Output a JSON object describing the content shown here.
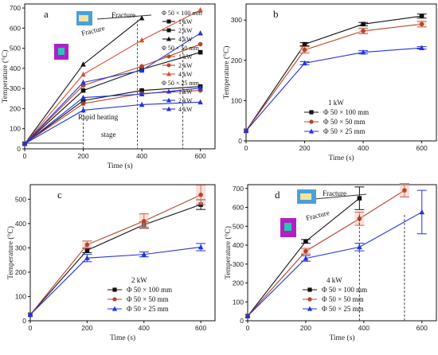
{
  "chart_data": [
    {
      "id": "a",
      "type": "line",
      "panel_letter": "a",
      "xlabel": "Time (s)",
      "ylabel": "Temperature (°C)",
      "xlim": [
        0,
        650
      ],
      "ylim": [
        0,
        720
      ],
      "xticks": [
        0,
        200,
        400,
        600
      ],
      "yticks": [
        0,
        100,
        200,
        300,
        400,
        500,
        600,
        700
      ],
      "x": [
        0,
        200,
        400,
        600
      ],
      "series": [
        {
          "group": "Φ 50 × 100 mm",
          "name": "1 kW",
          "color": "#111111",
          "marker": "square",
          "values": [
            25,
            240,
            290,
            310
          ]
        },
        {
          "group": "Φ 50 × 100 mm",
          "name": "2 kW",
          "color": "#111111",
          "marker": "square",
          "values": [
            25,
            290,
            395,
            480
          ]
        },
        {
          "group": "Φ 50 × 100 mm",
          "name": "4 kW",
          "color": "#111111",
          "marker": "triangle",
          "values": [
            25,
            420,
            650,
            null
          ]
        },
        {
          "group": "Φ 50 × 50 mm",
          "name": "1 kW",
          "color": "#b5452a",
          "marker": "circle",
          "values": [
            25,
            225,
            275,
            290
          ]
        },
        {
          "group": "Φ 50 × 50 mm",
          "name": "2 kW",
          "color": "#b5452a",
          "marker": "circle",
          "values": [
            25,
            315,
            410,
            520
          ]
        },
        {
          "group": "Φ 50 × 50 mm",
          "name": "4 kW",
          "color": "#d95030",
          "marker": "triangle",
          "values": [
            25,
            370,
            540,
            690
          ]
        },
        {
          "group": "Φ 50 × 25 mm",
          "name": "1 kW",
          "color": "#2233dd",
          "marker": "triangle",
          "values": [
            25,
            192,
            220,
            232
          ]
        },
        {
          "group": "Φ 50 × 25 mm",
          "name": "2 kW",
          "color": "#2233dd",
          "marker": "triangle",
          "values": [
            25,
            255,
            272,
            302
          ]
        },
        {
          "group": "Φ 50 × 25 mm",
          "name": "4 kW",
          "color": "#2233dd",
          "marker": "triangle",
          "values": [
            25,
            330,
            390,
            575
          ]
        }
      ],
      "annotations": [
        "Fracture",
        "Fracture",
        "Rapid heating",
        "stage"
      ],
      "legend_groups": [
        "Φ 50 × 100 mm",
        "Φ 50 × 50 mm",
        "Φ 50 × 25 mm"
      ]
    },
    {
      "id": "b",
      "type": "line",
      "panel_letter": "b",
      "xlabel": "Time (s)",
      "ylabel": "Temperature (°C)",
      "xlim": [
        0,
        650
      ],
      "ylim": [
        0,
        340
      ],
      "xticks": [
        0,
        200,
        400,
        600
      ],
      "yticks": [
        0,
        100,
        200,
        300
      ],
      "x": [
        0,
        200,
        400,
        600
      ],
      "legend_title": "1 kW",
      "series": [
        {
          "name": "Φ 50 × 100 mm",
          "color": "#111111",
          "marker": "square",
          "values": [
            25,
            240,
            290,
            310
          ],
          "errors": [
            0,
            4,
            4,
            5
          ]
        },
        {
          "name": "Φ 50 × 50 mm",
          "color": "#b5452a",
          "marker": "circle",
          "values": [
            25,
            226,
            273,
            290
          ],
          "errors": [
            0,
            8,
            7,
            7
          ]
        },
        {
          "name": "Φ 50 × 25 mm",
          "color": "#2233dd",
          "marker": "triangle",
          "values": [
            25,
            193,
            220,
            231
          ],
          "errors": [
            0,
            4,
            4,
            3
          ]
        }
      ]
    },
    {
      "id": "c",
      "type": "line",
      "panel_letter": "c",
      "xlabel": "Time (s)",
      "ylabel": "Temperature (°C)",
      "xlim": [
        0,
        650
      ],
      "ylim": [
        0,
        560
      ],
      "xticks": [
        0,
        200,
        400,
        600
      ],
      "yticks": [
        0,
        100,
        200,
        300,
        400,
        500
      ],
      "x": [
        0,
        200,
        400,
        600
      ],
      "legend_title": "2 kW",
      "series": [
        {
          "name": "Φ 50 × 100 mm",
          "color": "#111111",
          "marker": "square",
          "values": [
            25,
            290,
            395,
            478
          ],
          "errors": [
            0,
            10,
            12,
            20
          ]
        },
        {
          "name": "Φ 50 × 50 mm",
          "color": "#b5452a",
          "marker": "circle",
          "values": [
            25,
            313,
            410,
            518
          ],
          "errors": [
            0,
            15,
            30,
            40
          ]
        },
        {
          "name": "Φ 50 × 25 mm",
          "color": "#2233dd",
          "marker": "triangle",
          "values": [
            25,
            258,
            273,
            303
          ],
          "errors": [
            0,
            15,
            10,
            15
          ]
        }
      ]
    },
    {
      "id": "d",
      "type": "line",
      "panel_letter": "d",
      "xlabel": "Time (s)",
      "ylabel": "Temperature (°C)",
      "xlim": [
        0,
        650
      ],
      "ylim": [
        0,
        720
      ],
      "xticks": [
        0,
        200,
        400,
        600
      ],
      "yticks": [
        0,
        100,
        200,
        300,
        400,
        500,
        600,
        700
      ],
      "x": [
        0,
        200,
        385,
        540,
        600
      ],
      "legend_title": "4 kW",
      "series": [
        {
          "name": "Φ 50 × 100 mm",
          "color": "#111111",
          "marker": "square",
          "points": [
            [
              0,
              25
            ],
            [
              200,
              420
            ],
            [
              385,
              648
            ]
          ],
          "errors": [
            0,
            10,
            60
          ]
        },
        {
          "name": "Φ 50 × 50 mm",
          "color": "#b5452a",
          "marker": "circle",
          "points": [
            [
              0,
              25
            ],
            [
              200,
              368
            ],
            [
              385,
              540
            ],
            [
              540,
              690
            ]
          ],
          "errors": [
            0,
            15,
            35,
            35
          ]
        },
        {
          "name": "Φ 50 × 25 mm",
          "color": "#2233dd",
          "marker": "triangle",
          "points": [
            [
              0,
              25
            ],
            [
              200,
              330
            ],
            [
              385,
              390
            ],
            [
              600,
              575
            ]
          ],
          "errors": [
            0,
            15,
            20,
            115
          ]
        }
      ],
      "annotations": [
        "Fracture",
        "Fracture"
      ]
    }
  ]
}
